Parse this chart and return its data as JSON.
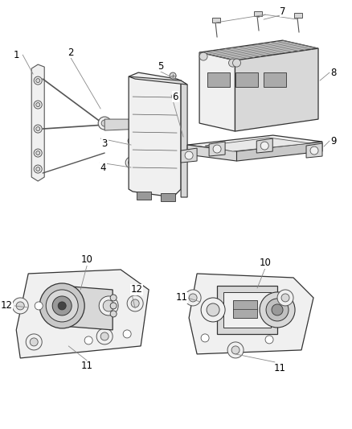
{
  "bg_color": "#ffffff",
  "line_color": "#555555",
  "dark_line": "#333333",
  "text_color": "#000000",
  "label_fontsize": 8.5,
  "leader_color": "#888888",
  "fill_light": "#f0f0f0",
  "fill_mid": "#d8d8d8",
  "fill_dark": "#999999"
}
